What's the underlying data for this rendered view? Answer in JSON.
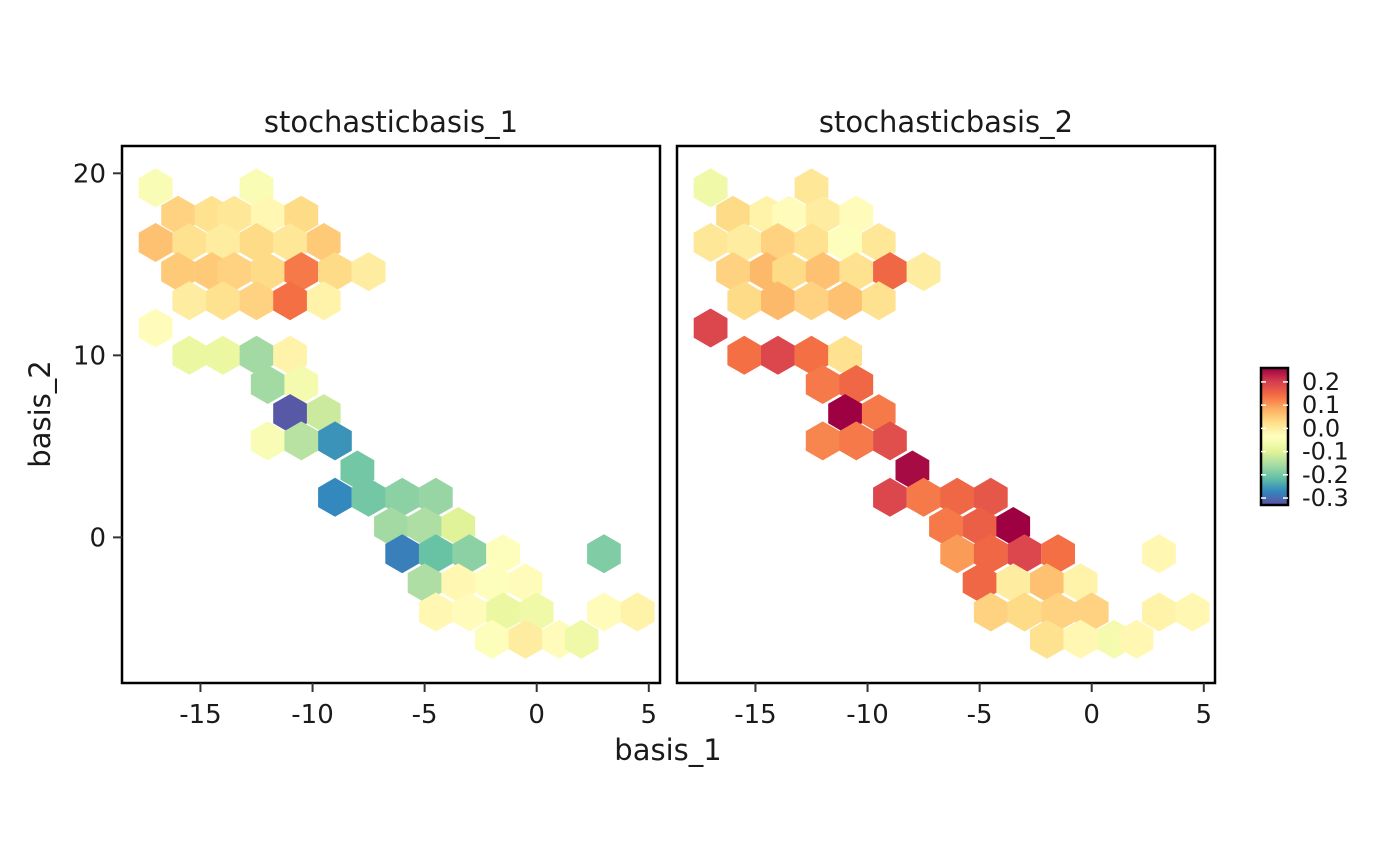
{
  "chart_data": {
    "type": "heatmap",
    "subtype": "hexbin-facets",
    "xlabel": "basis_1",
    "ylabel": "basis_2",
    "xlim": [
      -18.5,
      5.5
    ],
    "ylim": [
      -8,
      21.5
    ],
    "x_ticks": [
      -15,
      -10,
      -5,
      0,
      5
    ],
    "y_ticks": [
      0,
      10,
      20
    ],
    "x_tick_labels": [
      "-15",
      "-10",
      "-5",
      "0",
      "5"
    ],
    "y_tick_labels": [
      "0",
      "10",
      "20"
    ],
    "colorbar": {
      "range": [
        -0.33,
        0.26
      ],
      "tick_values": [
        0.2,
        0.1,
        0.0,
        -0.1,
        -0.2,
        -0.3
      ],
      "tick_labels": [
        "0.2",
        "0.1",
        "0.0",
        "-0.1",
        "-0.2",
        "-0.3"
      ],
      "palette": [
        "#5E4FA2",
        "#3288BD",
        "#66C2A5",
        "#ABDDA4",
        "#E6F598",
        "#FFFFBF",
        "#FEE08B",
        "#FDAE61",
        "#F46D43",
        "#D53E4F",
        "#9E0142"
      ],
      "placement": "right"
    },
    "facets": [
      {
        "title": "stochasticbasis_1",
        "cells": [
          {
            "x": -17,
            "y": 19.2,
            "v": -0.05
          },
          {
            "x": -12.5,
            "y": 19.2,
            "v": -0.05
          },
          {
            "x": -16,
            "y": 17.7,
            "v": 0.04
          },
          {
            "x": -14.5,
            "y": 17.7,
            "v": 0.02
          },
          {
            "x": -13.5,
            "y": 17.7,
            "v": 0.01
          },
          {
            "x": -12,
            "y": 17.7,
            "v": -0.02
          },
          {
            "x": -10.5,
            "y": 17.7,
            "v": 0.03
          },
          {
            "x": -17,
            "y": 16.2,
            "v": 0.06
          },
          {
            "x": -15.5,
            "y": 16.2,
            "v": 0.02
          },
          {
            "x": -14,
            "y": 16.2,
            "v": 0.0
          },
          {
            "x": -12.5,
            "y": 16.2,
            "v": 0.03
          },
          {
            "x": -11,
            "y": 16.2,
            "v": 0.01
          },
          {
            "x": -9.5,
            "y": 16.2,
            "v": 0.05
          },
          {
            "x": -16,
            "y": 14.6,
            "v": 0.05
          },
          {
            "x": -14.5,
            "y": 14.6,
            "v": 0.05
          },
          {
            "x": -13.5,
            "y": 14.6,
            "v": 0.04
          },
          {
            "x": -12,
            "y": 14.6,
            "v": 0.03
          },
          {
            "x": -10.5,
            "y": 14.6,
            "v": 0.13
          },
          {
            "x": -9,
            "y": 14.6,
            "v": 0.03
          },
          {
            "x": -7.5,
            "y": 14.6,
            "v": 0.0
          },
          {
            "x": -15.5,
            "y": 13,
            "v": 0.0
          },
          {
            "x": -14,
            "y": 13,
            "v": 0.02
          },
          {
            "x": -12.5,
            "y": 13,
            "v": 0.04
          },
          {
            "x": -11,
            "y": 13,
            "v": 0.14
          },
          {
            "x": -9.5,
            "y": 13,
            "v": -0.01
          },
          {
            "x": -17,
            "y": 11.5,
            "v": -0.03
          },
          {
            "x": -15.5,
            "y": 10,
            "v": -0.08
          },
          {
            "x": -14,
            "y": 10,
            "v": -0.08
          },
          {
            "x": -12.5,
            "y": 10,
            "v": -0.16
          },
          {
            "x": -11,
            "y": 10,
            "v": -0.01
          },
          {
            "x": -12,
            "y": 8.4,
            "v": -0.16
          },
          {
            "x": -10.5,
            "y": 8.4,
            "v": -0.06
          },
          {
            "x": -11,
            "y": 6.8,
            "v": -0.32
          },
          {
            "x": -9.5,
            "y": 6.8,
            "v": -0.12
          },
          {
            "x": -12,
            "y": 5.3,
            "v": -0.05
          },
          {
            "x": -10.5,
            "y": 5.3,
            "v": -0.14
          },
          {
            "x": -9,
            "y": 5.3,
            "v": -0.26
          },
          {
            "x": -8,
            "y": 3.7,
            "v": -0.2
          },
          {
            "x": -9,
            "y": 2.2,
            "v": -0.27
          },
          {
            "x": -7.5,
            "y": 2.2,
            "v": -0.2
          },
          {
            "x": -6,
            "y": 2.2,
            "v": -0.18
          },
          {
            "x": -4.5,
            "y": 2.2,
            "v": -0.17
          },
          {
            "x": -6.5,
            "y": 0.6,
            "v": -0.16
          },
          {
            "x": -5,
            "y": 0.6,
            "v": -0.15
          },
          {
            "x": -3.5,
            "y": 0.6,
            "v": -0.1
          },
          {
            "x": -6,
            "y": -0.9,
            "v": -0.28
          },
          {
            "x": -4.5,
            "y": -0.9,
            "v": -0.21
          },
          {
            "x": -3,
            "y": -0.9,
            "v": -0.18
          },
          {
            "x": -1.5,
            "y": -0.9,
            "v": -0.04
          },
          {
            "x": -5,
            "y": -2.5,
            "v": -0.15
          },
          {
            "x": -3.5,
            "y": -2.5,
            "v": -0.02
          },
          {
            "x": -2,
            "y": -2.5,
            "v": -0.04
          },
          {
            "x": -0.5,
            "y": -2.5,
            "v": -0.03
          },
          {
            "x": -4.5,
            "y": -4.1,
            "v": -0.02
          },
          {
            "x": -3,
            "y": -4.1,
            "v": -0.03
          },
          {
            "x": -1.5,
            "y": -4.1,
            "v": -0.08
          },
          {
            "x": 0,
            "y": -4.1,
            "v": -0.07
          },
          {
            "x": 3,
            "y": -4.1,
            "v": -0.03
          },
          {
            "x": 4.5,
            "y": -4.1,
            "v": -0.01
          },
          {
            "x": -2,
            "y": -5.6,
            "v": -0.04
          },
          {
            "x": -0.5,
            "y": -5.6,
            "v": 0.0
          },
          {
            "x": 1,
            "y": -5.6,
            "v": -0.03
          },
          {
            "x": 2,
            "y": -5.6,
            "v": -0.07
          },
          {
            "x": 3,
            "y": -0.9,
            "v": -0.19
          }
        ]
      },
      {
        "title": "stochasticbasis_2",
        "cells": [
          {
            "x": -17,
            "y": 19.2,
            "v": -0.07
          },
          {
            "x": -12.5,
            "y": 19.2,
            "v": 0.01
          },
          {
            "x": -16,
            "y": 17.7,
            "v": 0.03
          },
          {
            "x": -14.5,
            "y": 17.7,
            "v": -0.01
          },
          {
            "x": -13.5,
            "y": 17.7,
            "v": -0.03
          },
          {
            "x": -12,
            "y": 17.7,
            "v": 0.0
          },
          {
            "x": -10.5,
            "y": 17.7,
            "v": -0.03
          },
          {
            "x": -17,
            "y": 16.2,
            "v": 0.01
          },
          {
            "x": -15.5,
            "y": 16.2,
            "v": 0.0
          },
          {
            "x": -14,
            "y": 16.2,
            "v": 0.04
          },
          {
            "x": -12.5,
            "y": 16.2,
            "v": 0.02
          },
          {
            "x": -11,
            "y": 16.2,
            "v": -0.04
          },
          {
            "x": -9.5,
            "y": 16.2,
            "v": 0.01
          },
          {
            "x": -16,
            "y": 14.6,
            "v": 0.04
          },
          {
            "x": -14.5,
            "y": 14.6,
            "v": 0.07
          },
          {
            "x": -13.5,
            "y": 14.6,
            "v": 0.03
          },
          {
            "x": -12,
            "y": 14.6,
            "v": 0.06
          },
          {
            "x": -10.5,
            "y": 14.6,
            "v": 0.02
          },
          {
            "x": -9,
            "y": 14.6,
            "v": 0.15
          },
          {
            "x": -7.5,
            "y": 14.6,
            "v": 0.0
          },
          {
            "x": -15.5,
            "y": 13,
            "v": 0.03
          },
          {
            "x": -14,
            "y": 13,
            "v": 0.07
          },
          {
            "x": -12.5,
            "y": 13,
            "v": 0.04
          },
          {
            "x": -11,
            "y": 13,
            "v": 0.06
          },
          {
            "x": -9.5,
            "y": 13,
            "v": 0.02
          },
          {
            "x": -17,
            "y": 11.5,
            "v": 0.19
          },
          {
            "x": -15.5,
            "y": 10,
            "v": 0.14
          },
          {
            "x": -14,
            "y": 10,
            "v": 0.19
          },
          {
            "x": -12.5,
            "y": 10,
            "v": 0.14
          },
          {
            "x": -11,
            "y": 10,
            "v": 0.02
          },
          {
            "x": -12,
            "y": 8.4,
            "v": 0.13
          },
          {
            "x": -10.5,
            "y": 8.4,
            "v": 0.15
          },
          {
            "x": -11,
            "y": 6.8,
            "v": 0.26
          },
          {
            "x": -9.5,
            "y": 6.8,
            "v": 0.13
          },
          {
            "x": -12,
            "y": 5.3,
            "v": 0.12
          },
          {
            "x": -10.5,
            "y": 5.3,
            "v": 0.13
          },
          {
            "x": -9,
            "y": 5.3,
            "v": 0.18
          },
          {
            "x": -8,
            "y": 3.7,
            "v": 0.25
          },
          {
            "x": -9,
            "y": 2.2,
            "v": 0.19
          },
          {
            "x": -7.5,
            "y": 2.2,
            "v": 0.13
          },
          {
            "x": -6,
            "y": 2.2,
            "v": 0.15
          },
          {
            "x": -4.5,
            "y": 2.2,
            "v": 0.17
          },
          {
            "x": -6.5,
            "y": 0.6,
            "v": 0.13
          },
          {
            "x": -5,
            "y": 0.6,
            "v": 0.16
          },
          {
            "x": -3.5,
            "y": 0.6,
            "v": 0.26
          },
          {
            "x": -6,
            "y": -0.9,
            "v": 0.1
          },
          {
            "x": -4.5,
            "y": -0.9,
            "v": 0.15
          },
          {
            "x": -3,
            "y": -0.9,
            "v": 0.19
          },
          {
            "x": -1.5,
            "y": -0.9,
            "v": 0.14
          },
          {
            "x": -5,
            "y": -2.5,
            "v": 0.15
          },
          {
            "x": -3.5,
            "y": -2.5,
            "v": 0.0
          },
          {
            "x": -2,
            "y": -2.5,
            "v": 0.06
          },
          {
            "x": -0.5,
            "y": -2.5,
            "v": -0.01
          },
          {
            "x": -4.5,
            "y": -4.1,
            "v": 0.04
          },
          {
            "x": -3,
            "y": -4.1,
            "v": 0.03
          },
          {
            "x": -1.5,
            "y": -4.1,
            "v": 0.04
          },
          {
            "x": 0,
            "y": -4.1,
            "v": 0.04
          },
          {
            "x": 3,
            "y": -4.1,
            "v": -0.01
          },
          {
            "x": 4.5,
            "y": -4.1,
            "v": -0.02
          },
          {
            "x": -2,
            "y": -5.6,
            "v": 0.02
          },
          {
            "x": -0.5,
            "y": -5.6,
            "v": -0.02
          },
          {
            "x": 1,
            "y": -5.6,
            "v": -0.06
          },
          {
            "x": 2,
            "y": -5.6,
            "v": -0.02
          },
          {
            "x": 3,
            "y": -0.9,
            "v": -0.02
          }
        ]
      }
    ]
  }
}
